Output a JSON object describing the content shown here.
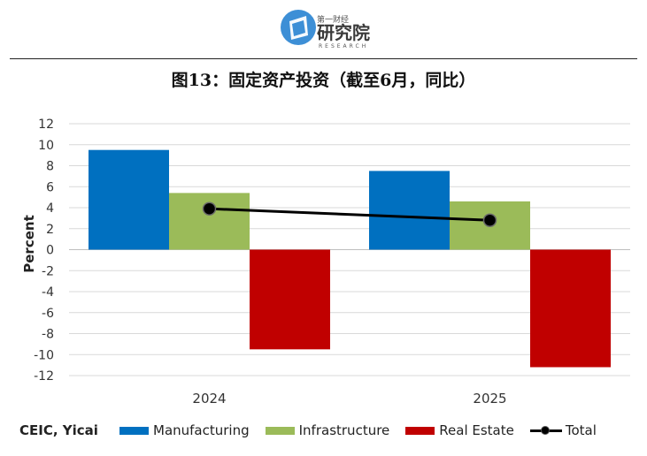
{
  "header": {
    "brand_cn_small": "第一财经",
    "brand_cn": "研究院",
    "brand_en": "RESEARCH"
  },
  "title": "图13：固定资产投资（截至6月，同比）",
  "source": "CEIC, Yicai",
  "colors": {
    "manufacturing": "#0070c0",
    "infrastructure": "#9bbb59",
    "real_estate": "#c00000",
    "total": "#000000"
  },
  "chart_data": {
    "type": "bar",
    "title": "图13：固定资产投资（截至6月，同比）",
    "xlabel": "",
    "ylabel": "Percent",
    "ylim": [
      -12,
      12
    ],
    "yticks": [
      12,
      10,
      8,
      6,
      4,
      2,
      0,
      -2,
      -4,
      -6,
      -8,
      -10,
      -12
    ],
    "grid": true,
    "legend": "bottom",
    "categories": [
      "2024",
      "2025"
    ],
    "series": [
      {
        "name": "Manufacturing",
        "type": "bar",
        "values": [
          9.5,
          7.5
        ]
      },
      {
        "name": "Infrastructure",
        "type": "bar",
        "values": [
          5.4,
          4.6
        ]
      },
      {
        "name": "Real Estate",
        "type": "bar",
        "values": [
          -9.5,
          -11.2
        ]
      },
      {
        "name": "Total",
        "type": "line",
        "values": [
          3.9,
          2.8
        ]
      }
    ]
  }
}
